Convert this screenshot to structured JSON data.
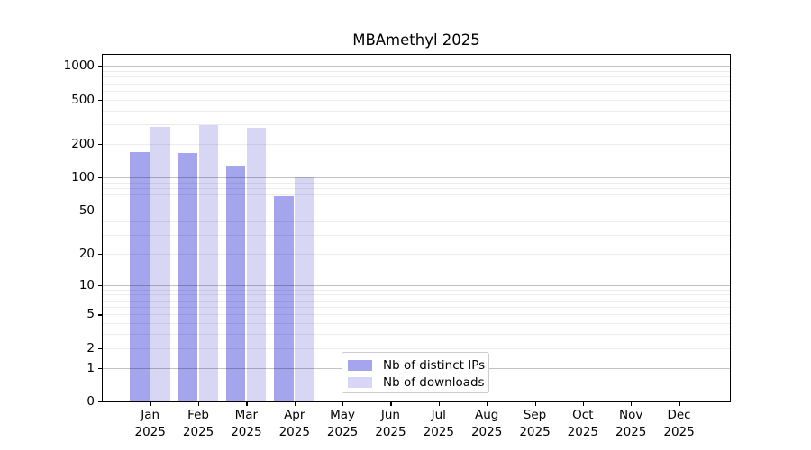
{
  "chart_data": {
    "type": "bar",
    "title": "MBAmethyl 2025",
    "categories": [
      "Jan",
      "Feb",
      "Mar",
      "Apr",
      "May",
      "Jun",
      "Jul",
      "Aug",
      "Sep",
      "Oct",
      "Nov",
      "Dec"
    ],
    "x_tick_second_line": "2025",
    "series": [
      {
        "name": "Nb of distinct IPs",
        "color": "#a5a5ee",
        "values": [
          168,
          165,
          128,
          67,
          null,
          null,
          null,
          null,
          null,
          null,
          null,
          null
        ]
      },
      {
        "name": "Nb of downloads",
        "color": "#d7d7f5",
        "values": [
          283,
          297,
          281,
          100,
          null,
          null,
          null,
          null,
          null,
          null,
          null,
          null
        ]
      }
    ],
    "yscale": "log10(1+x)",
    "ylim": [
      0,
      1270
    ],
    "yticks": [
      1000,
      500,
      200,
      100,
      50,
      20,
      10,
      5,
      2,
      1,
      0
    ],
    "grid": {
      "orientation": "horizontal",
      "major_lines": [
        1,
        10,
        100,
        1000
      ],
      "minor_multiples_per_decade": [
        2,
        3,
        4,
        5,
        6,
        7,
        8,
        9
      ],
      "drawn_above_bars": true
    },
    "legend_position": "inside-bottom-center"
  },
  "colors": {
    "bar_distinct_ips": "#a5a5ee",
    "bar_downloads": "#d7d7f5",
    "axis": "#000000",
    "grid_major": "#c4c4c4",
    "grid_minor": "#ececec",
    "legend_border": "#cccccc",
    "background": "#ffffff",
    "text": "#000000"
  }
}
